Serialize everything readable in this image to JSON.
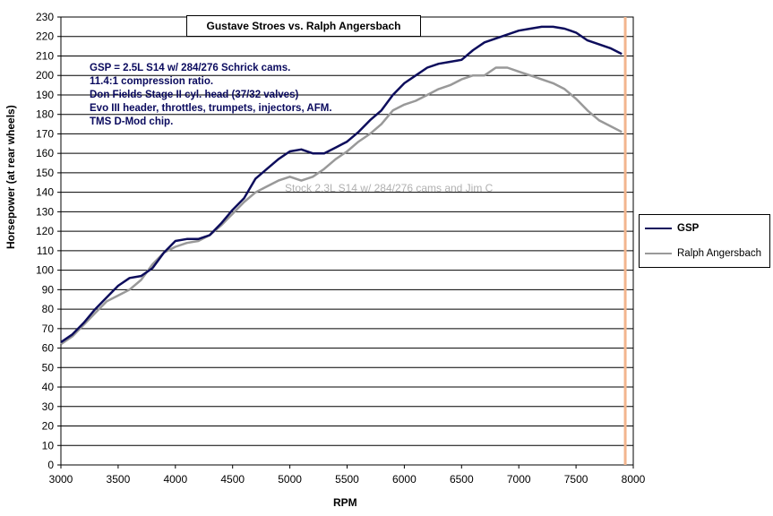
{
  "chart_data": {
    "type": "line",
    "title": "Gustave Stroes vs. Ralph Angersbach",
    "xlabel": "RPM",
    "ylabel": "Horsepower (at rear wheels)",
    "xlim": [
      3000,
      8000
    ],
    "ylim": [
      0,
      230
    ],
    "xticks": [
      3000,
      3500,
      4000,
      4500,
      5000,
      5500,
      6000,
      6500,
      7000,
      7500,
      8000
    ],
    "yticks": [
      0,
      10,
      20,
      30,
      40,
      50,
      60,
      70,
      80,
      90,
      100,
      110,
      120,
      130,
      140,
      150,
      160,
      170,
      180,
      190,
      200,
      210,
      220,
      230
    ],
    "grid": "horizontal",
    "legend_position": "right",
    "annotation_lines": [
      "GSP = 2.5L S14 w/ 284/276 Schrick cams.",
      "11.4:1 compression ratio.",
      "Don Fields Stage II cyl. head (37/32 valves)",
      "Evo III header, throttles, trumpets, injectors, AFM.",
      "TMS D-Mod chip."
    ],
    "series_annotation": "Stock 2.3L S14 w/ 284/276 cams and Jim C",
    "marker_line_x": 7930,
    "series": [
      {
        "name": "GSP",
        "color": "#0d0d5c",
        "x": [
          3000,
          3100,
          3200,
          3300,
          3400,
          3500,
          3600,
          3700,
          3800,
          3900,
          4000,
          4100,
          4200,
          4300,
          4400,
          4500,
          4600,
          4700,
          4800,
          4900,
          5000,
          5100,
          5200,
          5300,
          5400,
          5500,
          5600,
          5700,
          5800,
          5900,
          6000,
          6100,
          6200,
          6300,
          6400,
          6500,
          6600,
          6700,
          6800,
          6900,
          7000,
          7100,
          7200,
          7300,
          7400,
          7500,
          7600,
          7700,
          7800,
          7900
        ],
        "values": [
          63,
          67,
          73,
          80,
          86,
          92,
          96,
          97,
          101,
          109,
          115,
          116,
          116,
          118,
          124,
          131,
          137,
          147,
          152,
          157,
          161,
          162,
          160,
          160,
          163,
          166,
          171,
          177,
          182,
          190,
          196,
          200,
          204,
          206,
          207,
          208,
          213,
          217,
          219,
          221,
          223,
          224,
          225,
          225,
          224,
          222,
          218,
          216,
          214,
          211
        ]
      },
      {
        "name": "Ralph Angersbach",
        "color": "#999999",
        "x": [
          3000,
          3100,
          3200,
          3300,
          3400,
          3500,
          3600,
          3700,
          3800,
          3900,
          4000,
          4100,
          4200,
          4300,
          4400,
          4500,
          4600,
          4700,
          4800,
          4900,
          5000,
          5100,
          5200,
          5300,
          5400,
          5500,
          5600,
          5700,
          5800,
          5900,
          6000,
          6100,
          6200,
          6300,
          6400,
          6500,
          6600,
          6700,
          6800,
          6900,
          7000,
          7100,
          7200,
          7300,
          7400,
          7500,
          7600,
          7700,
          7800,
          7900
        ],
        "values": [
          62,
          66,
          72,
          78,
          84,
          87,
          90,
          95,
          103,
          109,
          112,
          114,
          115,
          118,
          123,
          129,
          135,
          140,
          143,
          146,
          148,
          146,
          148,
          152,
          157,
          161,
          166,
          170,
          175,
          182,
          185,
          187,
          190,
          193,
          195,
          198,
          200,
          200,
          204,
          204,
          202,
          200,
          198,
          196,
          193,
          188,
          182,
          177,
          174,
          171
        ]
      }
    ]
  }
}
